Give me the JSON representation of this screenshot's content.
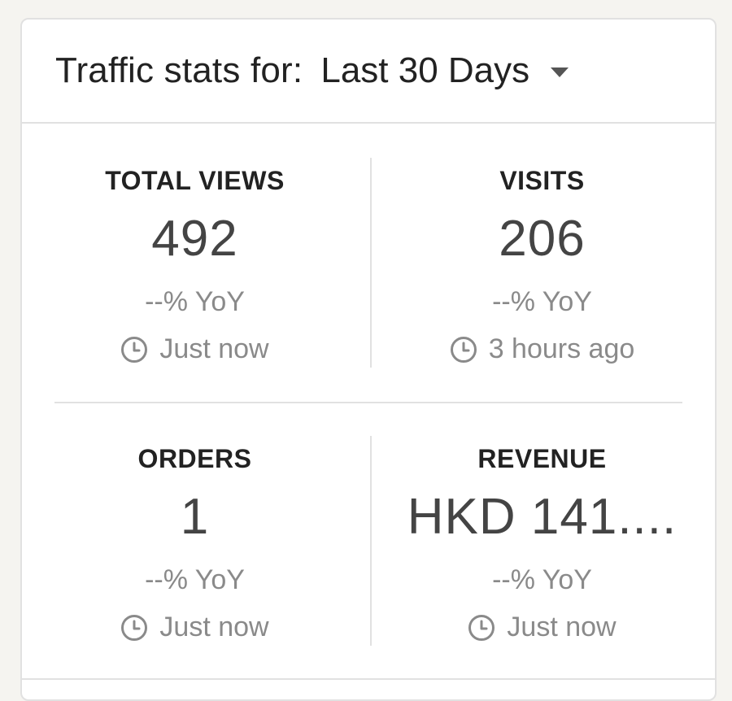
{
  "header": {
    "title": "Traffic stats for:",
    "range_label": "Last 30 Days"
  },
  "stats": [
    {
      "label": "TOTAL VIEWS",
      "value": "492",
      "yoy": "--% YoY",
      "time": "Just now"
    },
    {
      "label": "VISITS",
      "value": "206",
      "yoy": "--% YoY",
      "time": "3 hours ago"
    },
    {
      "label": "ORDERS",
      "value": "1",
      "yoy": "--% YoY",
      "time": "Just now"
    },
    {
      "label": "REVENUE",
      "value": "HKD 141....",
      "yoy": "--% YoY",
      "time": "Just now"
    }
  ],
  "icons": {
    "time": "clock-icon",
    "dropdown": "chevron-down-icon"
  },
  "colors": {
    "background": "#f5f4f0",
    "card": "#ffffff",
    "border": "#e1e1e1",
    "text_primary": "#222222",
    "text_value": "#444444",
    "text_muted": "#8a8a8a"
  }
}
